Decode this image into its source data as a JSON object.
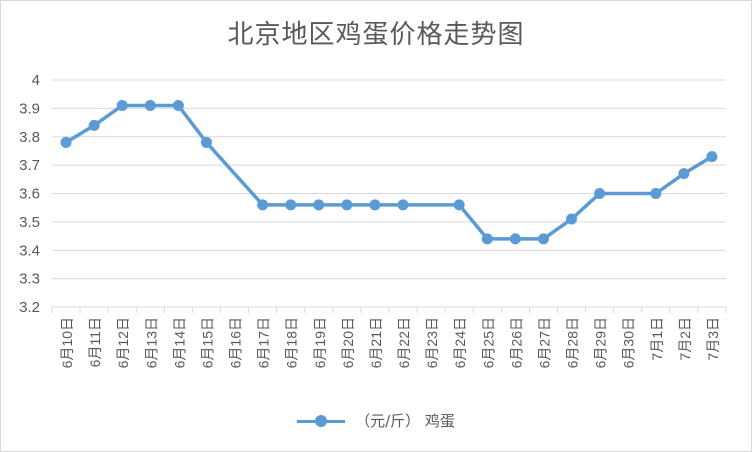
{
  "chart_data": {
    "type": "line",
    "title": "北京地区鸡蛋价格走势图",
    "categories": [
      "6月10日",
      "6月11日",
      "6月12日",
      "6月13日",
      "6月14日",
      "6月15日",
      "6月16日",
      "6月17日",
      "6月18日",
      "6月19日",
      "6月20日",
      "6月21日",
      "6月22日",
      "6月23日",
      "6月24日",
      "6月25日",
      "6月26日",
      "6月27日",
      "6月28日",
      "6月29日",
      "6月30日",
      "7月1日",
      "7月2日",
      "7月3日"
    ],
    "series": [
      {
        "name": "（元/斤） 鸡蛋",
        "values": [
          3.78,
          3.84,
          3.91,
          3.91,
          3.91,
          3.78,
          null,
          3.56,
          3.56,
          3.56,
          3.56,
          3.56,
          3.56,
          null,
          3.56,
          3.44,
          3.44,
          3.44,
          3.51,
          3.6,
          null,
          3.6,
          3.67,
          3.73
        ]
      }
    ],
    "ylim": [
      3.2,
      4
    ],
    "yticks": [
      "3.2",
      "3.3",
      "3.4",
      "3.5",
      "3.6",
      "3.7",
      "3.8",
      "3.9",
      "4"
    ],
    "grid": true,
    "legend": "bottom",
    "colors": {
      "series": "#5b9bd5",
      "grid": "#d9d9d9",
      "text": "#595959"
    }
  }
}
